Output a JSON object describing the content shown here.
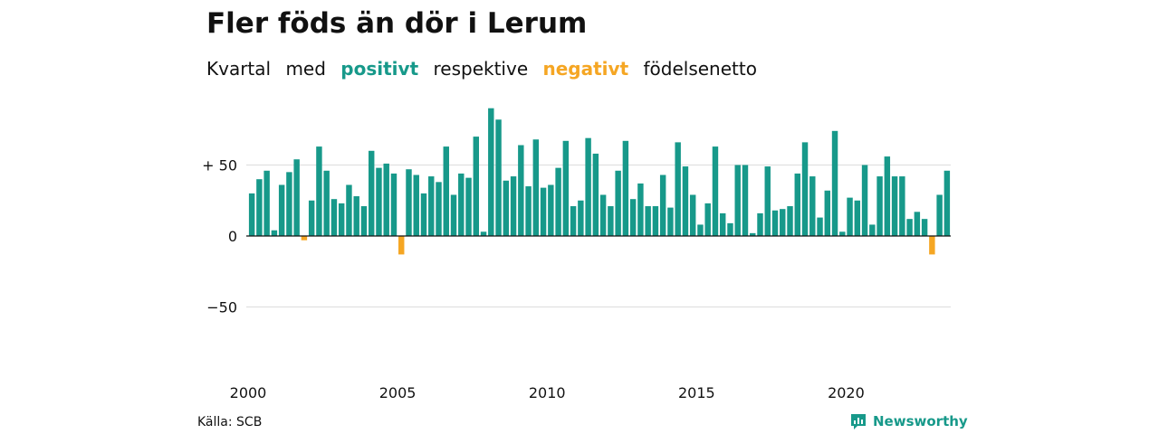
{
  "title": "Fler föds än dör i Lerum",
  "subtitle": {
    "word1": "Kvartal",
    "word2": "med",
    "positive": "positivt",
    "word3": "respektive",
    "negative": "negativt",
    "word4": "födelsenetto"
  },
  "source": "Källa: SCB",
  "brand": "Newsworthy",
  "colors": {
    "positive": "#17998a",
    "negative": "#f5a623",
    "grid": "#dddddd",
    "axis": "#111111"
  },
  "chart_data": {
    "type": "bar",
    "title": "Fler föds än dör i Lerum",
    "xlabel": "",
    "ylabel": "",
    "ylim": [
      -80,
      90
    ],
    "grid": true,
    "y_ticks": [
      {
        "value": 50,
        "label": "+ 50"
      },
      {
        "value": 0,
        "label": "0"
      },
      {
        "value": -50,
        "label": "−50"
      }
    ],
    "x_ticks": [
      {
        "value": 2000,
        "label": "2000"
      },
      {
        "value": 2005,
        "label": "2005"
      },
      {
        "value": 2010,
        "label": "2010"
      },
      {
        "value": 2015,
        "label": "2015"
      },
      {
        "value": 2020,
        "label": "2020"
      }
    ],
    "start_year": 2000,
    "values": [
      30,
      40,
      46,
      4,
      36,
      45,
      54,
      -3,
      25,
      63,
      46,
      26,
      23,
      36,
      28,
      21,
      60,
      48,
      51,
      44,
      -13,
      47,
      43,
      30,
      42,
      38,
      63,
      29,
      44,
      41,
      70,
      3,
      90,
      82,
      39,
      42,
      64,
      35,
      68,
      34,
      36,
      48,
      67,
      21,
      25,
      69,
      58,
      29,
      21,
      46,
      67,
      26,
      37,
      21,
      21,
      43,
      20,
      66,
      49,
      29,
      8,
      23,
      63,
      16,
      9,
      50,
      50,
      2,
      16,
      49,
      18,
      19,
      21,
      44,
      66,
      42,
      13,
      32,
      74,
      3,
      27,
      25,
      50,
      8,
      42,
      56,
      42,
      42,
      12,
      17,
      12,
      -13,
      29,
      46
    ]
  }
}
